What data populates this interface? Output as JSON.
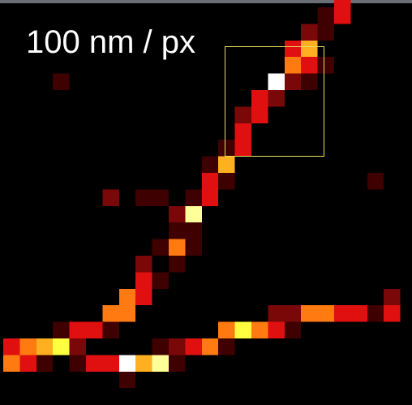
{
  "label": "100 nm / px"
}
